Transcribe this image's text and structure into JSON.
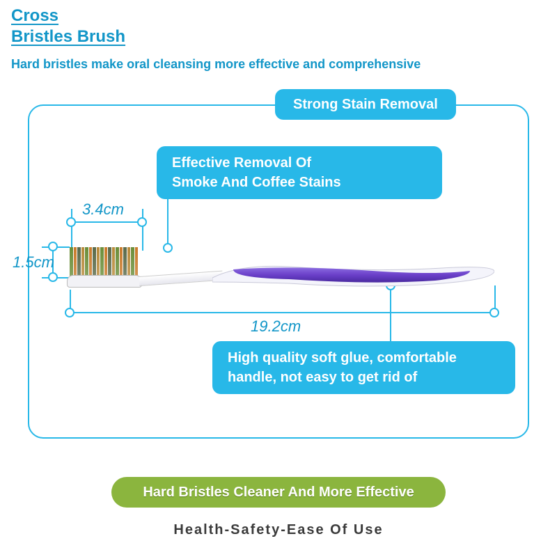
{
  "colors": {
    "primary_blue": "#28b8e8",
    "text_blue": "#1296c8",
    "dark_text": "#3a3a3a",
    "green": "#8bb53e",
    "green_text": "#5a7a1a",
    "frame_border": "#28b8e8",
    "dim_line": "#28b8e8",
    "handle_purple": "#6a3fc9",
    "handle_light": "#efefff"
  },
  "title": {
    "line1": "Cross",
    "line2": "Bristles Brush"
  },
  "subtitle": "Hard bristles make oral cleansing more effective and comprehensive",
  "header_pill": "Strong Stain Removal",
  "feature1": {
    "line1": "Effective Removal Of",
    "line2": "Smoke And Coffee Stains"
  },
  "feature2": {
    "line1": "High quality soft glue, comfortable",
    "line2": "handle, not easy to get rid of"
  },
  "dimensions": {
    "head_width": "3.4cm",
    "bristle_height": "1.5cm",
    "total_length": "19.2cm"
  },
  "bottom_pill": "Hard Bristles Cleaner And More Effective",
  "tagline": "Health-Safety-Ease Of Use",
  "bristle_colors": [
    "#6b8e3a",
    "#c97a2a",
    "#5a6a4a",
    "#b88a3a",
    "#6b8e3a",
    "#c97a2a",
    "#5a6a4a",
    "#b88a3a",
    "#6b8e3a",
    "#c97a2a",
    "#5a6a4a",
    "#b88a3a",
    "#6b8e3a",
    "#c97a2a",
    "#5a6a4a",
    "#b88a3a",
    "#6b8e3a",
    "#c97a2a"
  ]
}
